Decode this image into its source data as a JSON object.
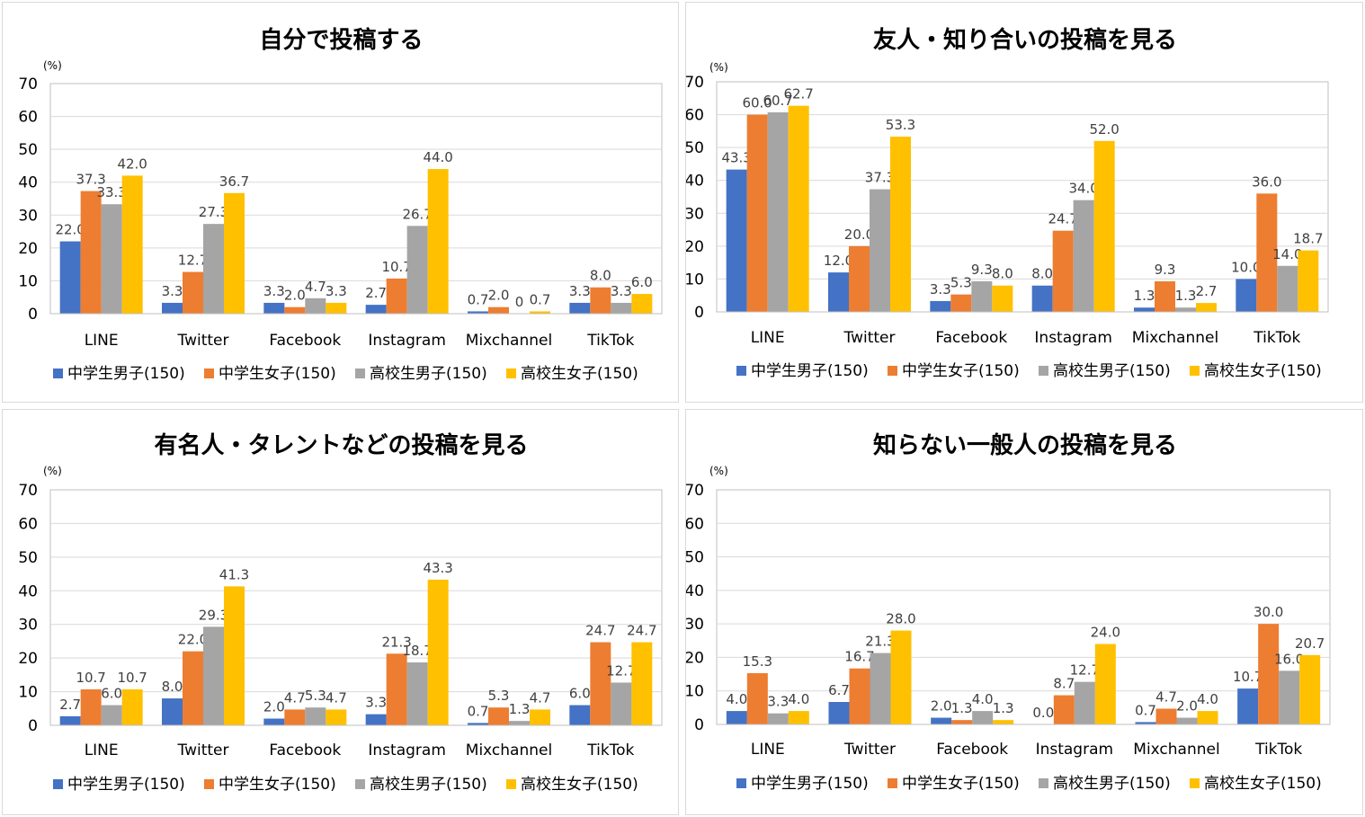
{
  "colors": {
    "series": [
      "#4472C4",
      "#ED7D31",
      "#A5A5A5",
      "#FFC000"
    ],
    "grid": "#d9d9d9",
    "axis": "#bfbfbf",
    "text": "#000000",
    "label": "#404040"
  },
  "chart_data": [
    {
      "type": "bar",
      "title": "自分で投稿する",
      "unit": "(%)",
      "ylim": [
        0,
        70
      ],
      "yticks": [
        "0",
        "10",
        "20",
        "30",
        "40",
        "50",
        "60",
        "70"
      ],
      "grid": true,
      "legend": "bottom",
      "categories": [
        "LINE",
        "Twitter",
        "Facebook",
        "Instagram",
        "Mixchannel",
        "TikTok"
      ],
      "series": [
        {
          "name": "中学生男子(150)",
          "values": [
            22.0,
            3.3,
            3.3,
            2.7,
            0.7,
            3.3
          ],
          "labels": [
            "22.0",
            "3.3",
            "3.3",
            "2.7",
            "0.7",
            "3.3"
          ]
        },
        {
          "name": "中学生女子(150)",
          "values": [
            37.3,
            12.7,
            2.0,
            10.7,
            2.0,
            8.0
          ],
          "labels": [
            "37.3",
            "12.7",
            "2.0",
            "10.7",
            "2.0",
            "8.0"
          ]
        },
        {
          "name": "高校生男子(150)",
          "values": [
            33.3,
            27.3,
            4.7,
            26.7,
            0,
            3.3
          ],
          "labels": [
            "33.3",
            "27.3",
            "4.7",
            "26.7",
            "0",
            "3.3"
          ]
        },
        {
          "name": "高校生女子(150)",
          "values": [
            42.0,
            36.7,
            3.3,
            44.0,
            0.7,
            6.0
          ],
          "labels": [
            "42.0",
            "36.7",
            "3.3",
            "44.0",
            "0.7",
            "6.0"
          ]
        }
      ]
    },
    {
      "type": "bar",
      "title": "友人・知り合いの投稿を見る",
      "unit": "(%)",
      "ylim": [
        0,
        70
      ],
      "yticks": [
        "0",
        "10",
        "20",
        "30",
        "40",
        "50",
        "60",
        "70"
      ],
      "grid": true,
      "legend": "bottom",
      "categories": [
        "LINE",
        "Twitter",
        "Facebook",
        "Instagram",
        "Mixchannel",
        "TikTok"
      ],
      "series": [
        {
          "name": "中学生男子(150)",
          "values": [
            43.3,
            12.0,
            3.3,
            8.0,
            1.3,
            10.0
          ],
          "labels": [
            "43.3",
            "12.0",
            "3.3",
            "8.0",
            "1.3",
            "10.0"
          ]
        },
        {
          "name": "中学生女子(150)",
          "values": [
            60.0,
            20.0,
            5.3,
            24.7,
            9.3,
            36.0
          ],
          "labels": [
            "60.0",
            "20.0",
            "5.3",
            "24.7",
            "9.3",
            "36.0"
          ]
        },
        {
          "name": "高校生男子(150)",
          "values": [
            60.7,
            37.3,
            9.3,
            34.0,
            1.3,
            14.0
          ],
          "labels": [
            "60.7",
            "37.3",
            "9.3",
            "34.0",
            "1.3",
            "14.0"
          ]
        },
        {
          "name": "高校生女子(150)",
          "values": [
            62.7,
            53.3,
            8.0,
            52.0,
            2.7,
            18.7
          ],
          "labels": [
            "62.7",
            "53.3",
            "8.0",
            "52.0",
            "2.7",
            "18.7"
          ]
        }
      ]
    },
    {
      "type": "bar",
      "title": "有名人・タレントなどの投稿を見る",
      "unit": "(%)",
      "ylim": [
        0,
        70
      ],
      "yticks": [
        "0",
        "10",
        "20",
        "30",
        "40",
        "50",
        "60",
        "70"
      ],
      "grid": true,
      "legend": "bottom",
      "categories": [
        "LINE",
        "Twitter",
        "Facebook",
        "Instagram",
        "Mixchannel",
        "TikTok"
      ],
      "series": [
        {
          "name": "中学生男子(150)",
          "values": [
            2.7,
            8.0,
            2.0,
            3.3,
            0.7,
            6.0
          ],
          "labels": [
            "2.7",
            "8.0",
            "2.0",
            "3.3",
            "0.7",
            "6.0"
          ]
        },
        {
          "name": "中学生女子(150)",
          "values": [
            10.7,
            22.0,
            4.7,
            21.3,
            5.3,
            24.7
          ],
          "labels": [
            "10.7",
            "22.0",
            "4.7",
            "21.3",
            "5.3",
            "24.7"
          ]
        },
        {
          "name": "高校生男子(150)",
          "values": [
            6.0,
            29.3,
            5.3,
            18.7,
            1.3,
            12.7
          ],
          "labels": [
            "6.0",
            "29.3",
            "5.3",
            "18.7",
            "1.3",
            "12.7"
          ]
        },
        {
          "name": "高校生女子(150)",
          "values": [
            10.7,
            41.3,
            4.7,
            43.3,
            4.7,
            24.7
          ],
          "labels": [
            "10.7",
            "41.3",
            "4.7",
            "43.3",
            "4.7",
            "24.7"
          ]
        }
      ]
    },
    {
      "type": "bar",
      "title": "知らない一般人の投稿を見る",
      "unit": "(%)",
      "ylim": [
        0,
        70
      ],
      "yticks": [
        "0",
        "10",
        "20",
        "30",
        "40",
        "50",
        "60",
        "70"
      ],
      "grid": true,
      "legend": "bottom",
      "categories": [
        "LINE",
        "Twitter",
        "Facebook",
        "Instagram",
        "Mixchannel",
        "TikTok"
      ],
      "series": [
        {
          "name": "中学生男子(150)",
          "values": [
            4.0,
            6.7,
            2.0,
            0.0,
            0.7,
            10.7
          ],
          "labels": [
            "4.0",
            "6.7",
            "2.0",
            "0.0",
            "0.7",
            "10.7"
          ]
        },
        {
          "name": "中学生女子(150)",
          "values": [
            15.3,
            16.7,
            1.3,
            8.7,
            4.7,
            30.0
          ],
          "labels": [
            "15.3",
            "16.7",
            "1.3",
            "8.7",
            "4.7",
            "30.0"
          ]
        },
        {
          "name": "高校生男子(150)",
          "values": [
            3.3,
            21.3,
            4.0,
            12.7,
            2.0,
            16.0
          ],
          "labels": [
            "3.3",
            "21.3",
            "4.0",
            "12.7",
            "2.0",
            "16.0"
          ]
        },
        {
          "name": "高校生女子(150)",
          "values": [
            4.0,
            28.0,
            1.3,
            24.0,
            4.0,
            20.7
          ],
          "labels": [
            "4.0",
            "28.0",
            "1.3",
            "24.0",
            "4.0",
            "20.7"
          ]
        }
      ]
    }
  ]
}
